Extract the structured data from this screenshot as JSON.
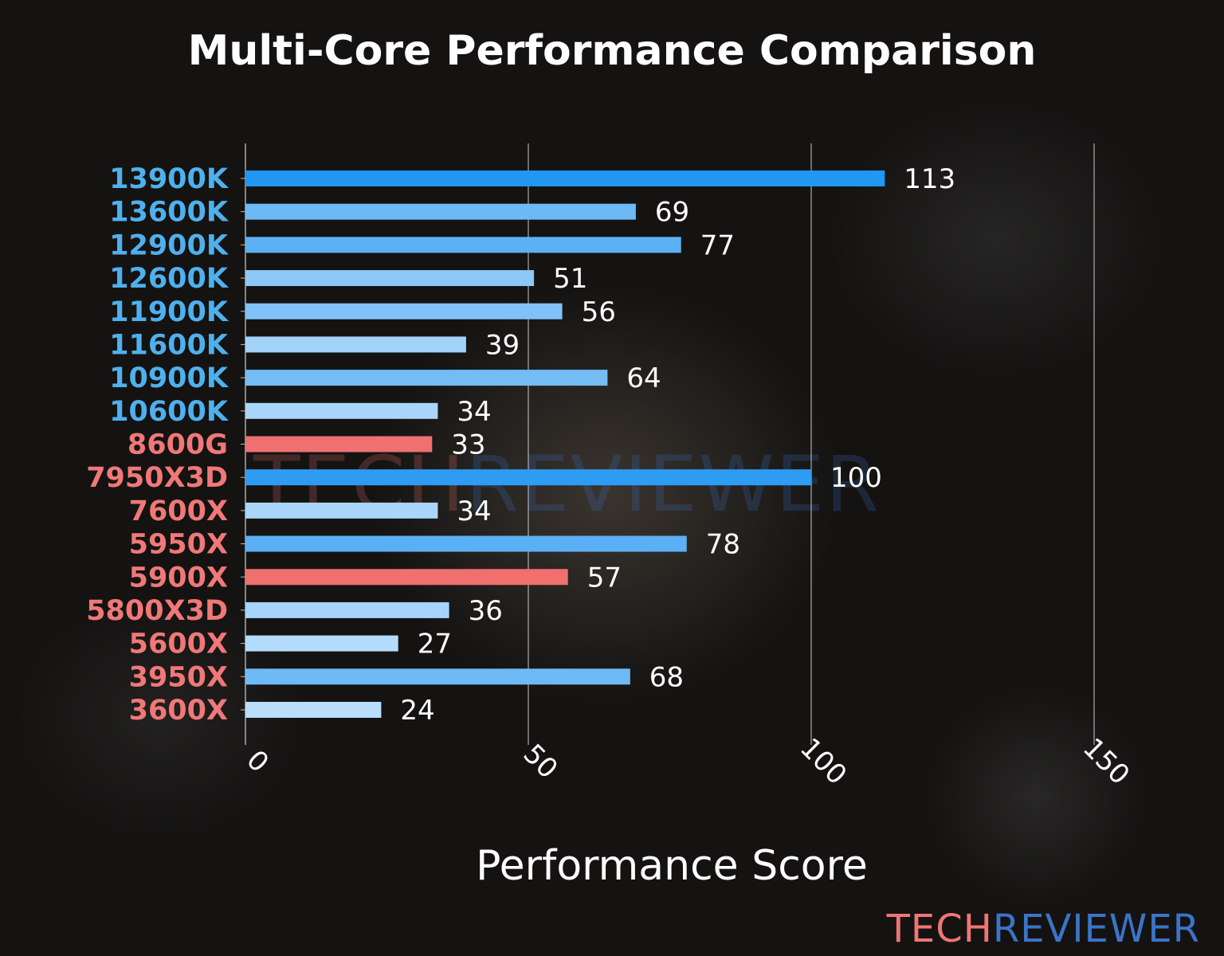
{
  "chart_data": {
    "type": "bar",
    "orientation": "horizontal",
    "title": "Multi-Core Performance Comparison",
    "xlabel": "Performance Score",
    "ylabel": "",
    "xlim": [
      0,
      160
    ],
    "xticks": [
      0,
      50,
      100,
      150
    ],
    "grid": "vertical",
    "categories": [
      "13900K",
      "13600K",
      "12900K",
      "12600K",
      "11900K",
      "11600K",
      "10900K",
      "10600K",
      "8600G",
      "7950X3D",
      "7600X",
      "5950X",
      "5900X",
      "5800X3D",
      "5600X",
      "3950X",
      "3600X"
    ],
    "values": [
      113,
      69,
      77,
      51,
      56,
      39,
      64,
      34,
      33,
      100,
      34,
      78,
      57,
      36,
      27,
      68,
      24
    ],
    "bar_colors": [
      "#2196F3",
      "#6CB9F6",
      "#5CB1F5",
      "#8CC8F8",
      "#80C2F7",
      "#A2D2F9",
      "#74BCF6",
      "#A9D6FA",
      "#F07070",
      "#2E9CF3",
      "#A9D6FA",
      "#5BB0F5",
      "#F07070",
      "#A6D4FA",
      "#B3DBFB",
      "#6EBAF6",
      "#B8DEFB"
    ],
    "label_colors": {
      "intel": "#4FB0EE",
      "amd": "#F07878"
    },
    "category_brand": [
      "intel",
      "intel",
      "intel",
      "intel",
      "intel",
      "intel",
      "intel",
      "intel",
      "amd",
      "amd",
      "amd",
      "amd",
      "amd",
      "amd",
      "amd",
      "amd",
      "amd"
    ]
  },
  "branding": {
    "logo_part1": "TECH",
    "logo_part2": "REVIEWER"
  }
}
